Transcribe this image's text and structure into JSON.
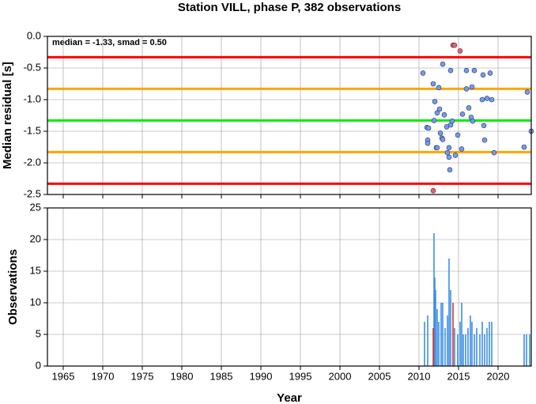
{
  "chart_data": [
    {
      "type": "scatter",
      "title": "Station VILL, phase P, 382 observations",
      "ylabel": "Median residual [s]",
      "annotation": "median = -1.33, smad = 0.50",
      "xlim": [
        1963,
        2024.2
      ],
      "xticks": [
        1965,
        1970,
        1975,
        1980,
        1985,
        1990,
        1995,
        2000,
        2005,
        2010,
        2015,
        2020
      ],
      "show_xtick_labels": false,
      "ylim": [
        -2.5,
        0
      ],
      "yticks": [
        {
          "value": 0,
          "label": "0.0"
        },
        -0.5,
        {
          "value": -1,
          "label": "-1.0"
        },
        -1.5,
        {
          "value": -2,
          "label": "-2.0"
        },
        -2.5
      ],
      "grid": true,
      "reference_lines": [
        {
          "value": -0.33,
          "color": "#ff0000"
        },
        {
          "value": -0.83,
          "color": "#ffa500"
        },
        {
          "value": -1.33,
          "color": "#00ee00"
        },
        {
          "value": -1.83,
          "color": "#ffa500"
        },
        {
          "value": -2.33,
          "color": "#ff0000"
        }
      ],
      "series": [
        {
          "color": "#6f9cf0",
          "x": [
            2010.5,
            2011.0,
            2011.2,
            2011.1,
            2011.1,
            2011.8,
            2011.9,
            2012.0,
            2012.2,
            2012.3,
            2012.3,
            2012.5,
            2012.6,
            2012.7,
            2012.9,
            2013.0,
            2013.0,
            2013.2,
            2013.5,
            2013.6,
            2013.8,
            2013.8,
            2013.9,
            2014.0,
            2014.0,
            2014.2,
            2014.6,
            2014.9,
            2015.4,
            2015.5,
            2016.0,
            2016.0,
            2016.3,
            2016.6,
            2016.7,
            2017.0,
            2016.8,
            2018.0,
            2018.1,
            2018.2,
            2018.3,
            2018.6,
            2019.0,
            2019.2,
            2019.5,
            2023.3,
            2023.7,
            2024.2
          ],
          "values": [
            -0.58,
            -1.44,
            -1.45,
            -1.64,
            -1.69,
            -0.75,
            -1.33,
            -1.03,
            -1.76,
            -1.76,
            -1.21,
            -0.81,
            -1.15,
            -1.53,
            -1.61,
            -1.63,
            -0.44,
            -1.24,
            -1.43,
            -1.84,
            -1.91,
            -1.76,
            -2.11,
            -0.54,
            -1.4,
            -1.34,
            -1.88,
            -1.56,
            -1.78,
            -1.23,
            -0.83,
            -0.54,
            -1.13,
            -1.28,
            -0.8,
            -0.54,
            -1.34,
            -1.0,
            -0.61,
            -1.41,
            -1.64,
            -0.98,
            -0.58,
            -1.0,
            -1.84,
            -1.75,
            -0.88,
            -1.5
          ]
        },
        {
          "color": "#f06060",
          "x": [
            2014.3,
            2014.5,
            2015.2,
            2011.8
          ],
          "values": [
            -0.14,
            -0.14,
            -0.23,
            -2.44
          ]
        }
      ]
    },
    {
      "type": "bar",
      "xlabel": "Year",
      "ylabel": "Observations",
      "xlim": [
        1963,
        2024.2
      ],
      "xticks": [
        1965,
        1970,
        1975,
        1980,
        1985,
        1990,
        1995,
        2000,
        2005,
        2010,
        2015,
        2020
      ],
      "show_xtick_labels": true,
      "ylim": [
        0,
        25
      ],
      "yticks": [
        0,
        5,
        10,
        15,
        20,
        25
      ],
      "grid": true,
      "series": [
        {
          "color": "#3d8fe6",
          "x": [
            2010.7,
            2011.1,
            2011.9,
            2012.0,
            2012.1,
            2012.3,
            2012.5,
            2012.8,
            2013.0,
            2013.3,
            2013.6,
            2013.8,
            2014.0,
            2014.5,
            2014.9,
            2015.2,
            2015.4,
            2015.6,
            2015.9,
            2016.2,
            2016.5,
            2016.7,
            2017.0,
            2017.3,
            2017.7,
            2018.0,
            2018.3,
            2018.6,
            2018.9,
            2019.2,
            2023.3,
            2023.6,
            2024.0
          ],
          "values": [
            7,
            8,
            21,
            14,
            12,
            9,
            7,
            10,
            10,
            6,
            8,
            17,
            12,
            6,
            5,
            7,
            10,
            5,
            5,
            6,
            8,
            7,
            5,
            6,
            5,
            7,
            5,
            6,
            7,
            7,
            5,
            5,
            5
          ]
        },
        {
          "color": "#e0302a",
          "x": [
            2011.8,
            2014.3
          ],
          "values": [
            6,
            10
          ]
        }
      ]
    }
  ]
}
